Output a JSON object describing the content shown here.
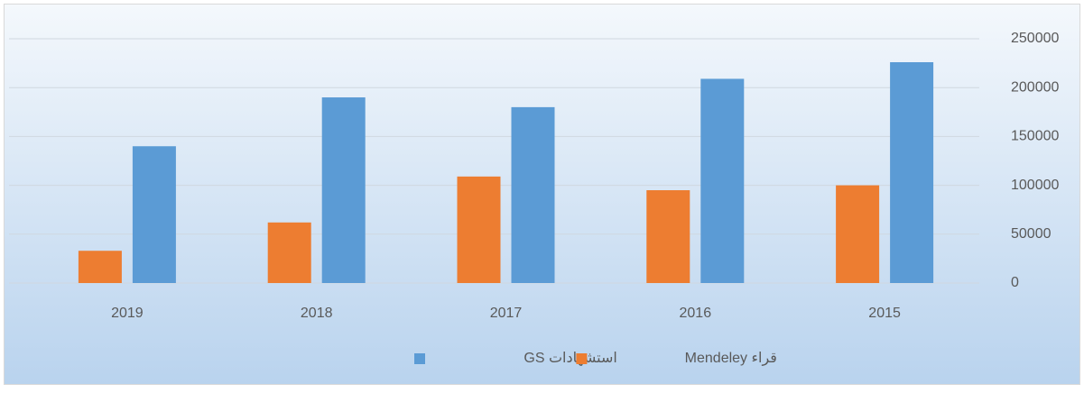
{
  "chart_data": {
    "type": "bar",
    "categories": [
      "2019",
      "2018",
      "2017",
      "2016",
      "2015"
    ],
    "series": [
      {
        "name": "قراء Mendeley",
        "color": "#ed7d31",
        "values": [
          33000,
          62000,
          109000,
          95000,
          100000
        ]
      },
      {
        "name": "استشهادات GS",
        "color": "#5b9bd5",
        "values": [
          140000,
          190000,
          180000,
          209000,
          226000
        ]
      }
    ],
    "ylim": [
      0,
      250000
    ],
    "yticks": [
      0,
      50000,
      100000,
      150000,
      200000,
      250000
    ],
    "grid": true,
    "y_axis_side": "right",
    "legend": "bottom"
  }
}
